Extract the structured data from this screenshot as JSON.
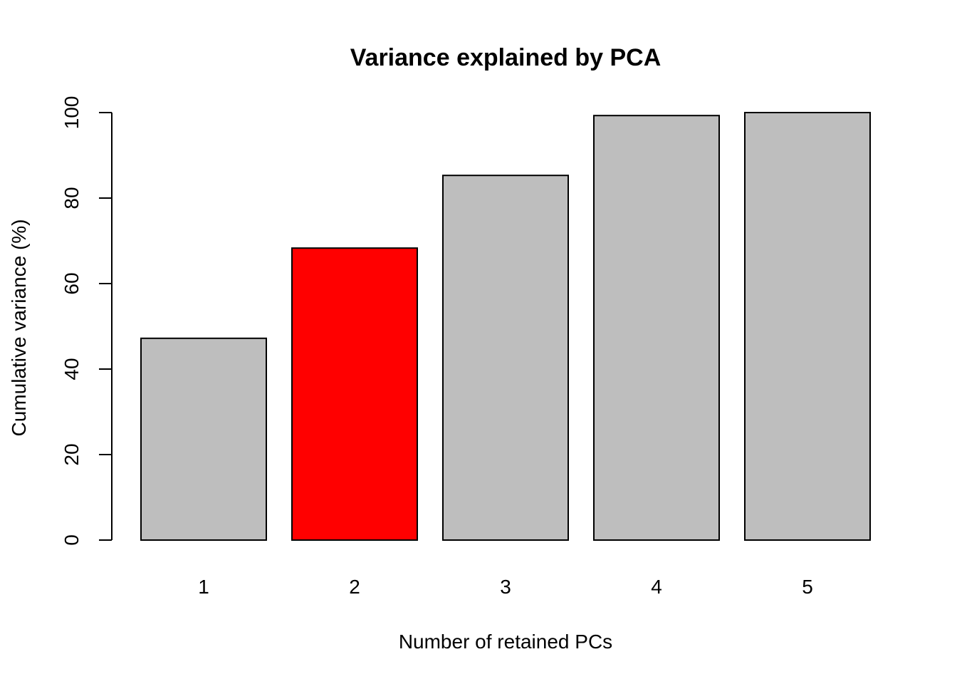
{
  "chart_data": {
    "type": "bar",
    "title": "Variance explained by PCA",
    "xlabel": "Number of retained PCs",
    "ylabel": "Cumulative variance (%)",
    "categories": [
      "1",
      "2",
      "3",
      "4",
      "5"
    ],
    "values": [
      47.2,
      68.3,
      85.3,
      99.3,
      100
    ],
    "highlight_index": 1,
    "bar_color": "#bebebe",
    "highlight_color": "#ff0000",
    "ylim": [
      0,
      100
    ],
    "yticks": [
      0,
      20,
      40,
      60,
      80,
      100
    ],
    "grid": false,
    "legend": "none"
  }
}
